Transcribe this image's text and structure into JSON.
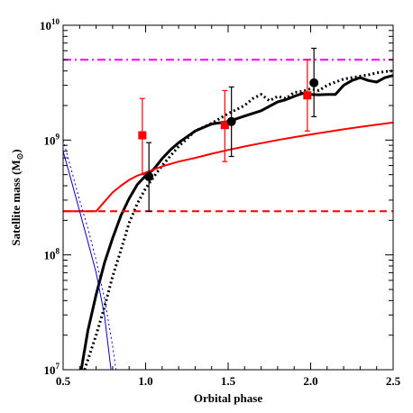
{
  "chart_data": {
    "type": "line",
    "xlabel": "Orbital phase",
    "ylabel": "Satellite mass (M",
    "ylabel_subscript": "⊙",
    "ylabel_close": ")",
    "xlim": [
      0.5,
      2.5
    ],
    "ylim": [
      10000000,
      10000000000
    ],
    "yscale": "log",
    "grid": false,
    "x_ticks": [
      {
        "value": 0.5,
        "label": "0.5"
      },
      {
        "value": 1.0,
        "label": "1.0"
      },
      {
        "value": 1.5,
        "label": "1.5"
      },
      {
        "value": 2.0,
        "label": "2.0"
      },
      {
        "value": 2.5,
        "label": "2.5"
      }
    ],
    "y_ticks": [
      {
        "value": 10000000,
        "base": "10",
        "exp": "7"
      },
      {
        "value": 100000000,
        "base": "10",
        "exp": "8"
      },
      {
        "value": 1000000000,
        "base": "10",
        "exp": "9"
      },
      {
        "value": 10000000000,
        "base": "10",
        "exp": "10"
      }
    ],
    "series": [
      {
        "id": "black-solid",
        "color": "#000000",
        "style": "solid",
        "width": 3,
        "x": [
          0.61,
          0.65,
          0.7,
          0.75,
          0.8,
          0.85,
          0.9,
          0.95,
          1.0,
          1.05,
          1.1,
          1.15,
          1.2,
          1.3,
          1.4,
          1.5,
          1.6,
          1.7,
          1.8,
          1.85,
          1.9,
          1.95,
          2.0,
          2.05,
          2.1,
          2.15,
          2.2,
          2.25,
          2.3,
          2.35,
          2.4,
          2.45,
          2.5
        ],
        "y": [
          10000000,
          22000000,
          45000000,
          85000000,
          140000000,
          220000000,
          310000000,
          410000000,
          490000000,
          560000000,
          690000000,
          820000000,
          950000000,
          1200000000,
          1380000000,
          1450000000,
          1620000000,
          1800000000,
          2150000000,
          2250000000,
          2400000000,
          2550000000,
          2500000000,
          2480000000,
          2500000000,
          2500000000,
          3000000000,
          3300000000,
          3500000000,
          3300000000,
          3200000000,
          3500000000,
          3650000000
        ]
      },
      {
        "id": "black-dotted",
        "color": "#000000",
        "style": "dotted",
        "width": 3,
        "x": [
          0.63,
          0.7,
          0.75,
          0.8,
          0.85,
          0.9,
          0.95,
          1.0,
          1.05,
          1.1,
          1.2,
          1.3,
          1.4,
          1.5,
          1.6,
          1.65,
          1.7,
          1.75,
          1.8,
          1.85,
          1.9,
          1.95,
          2.0,
          2.05,
          2.1,
          2.15,
          2.2,
          2.25,
          2.3,
          2.35,
          2.4,
          2.45,
          2.5
        ],
        "y": [
          10000000,
          20000000,
          35000000,
          65000000,
          110000000,
          190000000,
          280000000,
          380000000,
          480000000,
          600000000,
          880000000,
          1200000000,
          1400000000,
          1700000000,
          2000000000,
          2300000000,
          2500000000,
          2200000000,
          2400000000,
          2300000000,
          2600000000,
          2650000000,
          2800000000,
          2700000000,
          3000000000,
          3200000000,
          3400000000,
          3500000000,
          3600000000,
          3700000000,
          3850000000,
          3950000000,
          4000000000
        ]
      },
      {
        "id": "red-solid",
        "color": "#ff0000",
        "style": "solid",
        "width": 2,
        "x": [
          0.5,
          0.6,
          0.7,
          0.75,
          0.8,
          0.85,
          0.9,
          0.95,
          1.0,
          1.1,
          1.2,
          1.3,
          1.4,
          1.5,
          1.6,
          1.7,
          1.8,
          1.9,
          2.0,
          2.1,
          2.2,
          2.3,
          2.4,
          2.5
        ],
        "y": [
          240000000,
          240000000,
          240000000,
          290000000,
          350000000,
          400000000,
          450000000,
          490000000,
          520000000,
          590000000,
          650000000,
          700000000,
          760000000,
          820000000,
          880000000,
          940000000,
          1000000000,
          1060000000,
          1120000000,
          1180000000,
          1240000000,
          1300000000,
          1360000000,
          1420000000
        ]
      },
      {
        "id": "red-dashed",
        "color": "#ff0000",
        "style": "dashed",
        "width": 2,
        "x": [
          0.5,
          2.5
        ],
        "y": [
          240000000,
          240000000
        ]
      },
      {
        "id": "magenta-dashdot",
        "color": "#ff00ff",
        "style": "dashdot",
        "width": 2,
        "x": [
          0.5,
          2.5
        ],
        "y": [
          5000000000,
          5000000000
        ]
      },
      {
        "id": "blue-solid",
        "color": "#0000cc",
        "style": "solid",
        "width": 1,
        "x": [
          0.5,
          0.55,
          0.6,
          0.65,
          0.7,
          0.75,
          0.79
        ],
        "y": [
          800000000,
          440000000,
          240000000,
          130000000,
          70000000,
          30000000,
          10000000
        ]
      },
      {
        "id": "blue-dotted",
        "color": "#0000cc",
        "style": "dotted",
        "width": 1,
        "x": [
          0.5,
          0.55,
          0.6,
          0.65,
          0.7,
          0.75,
          0.8,
          0.82
        ],
        "y": [
          1000000000,
          550000000,
          300000000,
          170000000,
          90000000,
          42000000,
          16000000,
          10000000
        ]
      }
    ],
    "points": [
      {
        "id": "red-square-1",
        "marker": "square",
        "color": "#ff0000",
        "x": 0.98,
        "y": 1100000000,
        "err_low": 500000000,
        "err_high": 2300000000
      },
      {
        "id": "red-square-2",
        "marker": "square",
        "color": "#ff0000",
        "x": 1.48,
        "y": 1350000000,
        "err_low": 650000000,
        "err_high": 2700000000
      },
      {
        "id": "red-square-3",
        "marker": "square",
        "color": "#ff0000",
        "x": 1.98,
        "y": 2450000000,
        "err_low": 1200000000,
        "err_high": 5000000000
      },
      {
        "id": "black-circle-1",
        "marker": "circle",
        "color": "#000000",
        "x": 1.02,
        "y": 480000000,
        "err_low": 240000000,
        "err_high": 950000000
      },
      {
        "id": "black-circle-2",
        "marker": "circle",
        "color": "#000000",
        "x": 1.52,
        "y": 1450000000,
        "err_low": 720000000,
        "err_high": 2900000000
      },
      {
        "id": "black-circle-3",
        "marker": "circle",
        "color": "#000000",
        "x": 2.02,
        "y": 3150000000,
        "err_low": 1600000000,
        "err_high": 6300000000
      }
    ]
  }
}
